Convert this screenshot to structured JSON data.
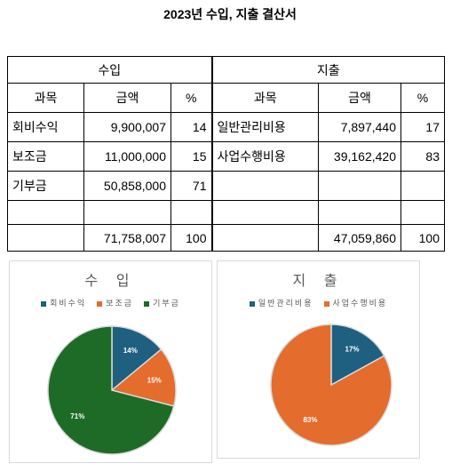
{
  "title": "2023년 수입, 지출 결산서",
  "table": {
    "groups": [
      "수입",
      "지출"
    ],
    "columns": [
      "과목",
      "금액",
      "%",
      "과목",
      "금액",
      "%"
    ],
    "rows": [
      [
        "회비수익",
        "9,900,007",
        "14",
        "일반관리비용",
        "7,897,440",
        "17"
      ],
      [
        "보조금",
        "11,000,000",
        "15",
        "사업수행비용",
        "39,162,420",
        "83"
      ],
      [
        "기부금",
        "50,858,000",
        "71",
        null,
        null,
        null
      ],
      [
        null,
        null,
        null,
        null,
        null,
        null
      ],
      [
        null,
        "71,758,007",
        "100",
        null,
        "47,059,860",
        "100"
      ]
    ]
  },
  "chart_data": [
    {
      "type": "pie",
      "title": "수 입",
      "categories": [
        "회비수익",
        "보조금",
        "기부금"
      ],
      "values": [
        14,
        15,
        71
      ],
      "value_labels": [
        "14%",
        "15%",
        "71%"
      ],
      "colors": [
        "#1f5f80",
        "#e46c2c",
        "#1e6b27"
      ]
    },
    {
      "type": "pie",
      "title": "지 출",
      "categories": [
        "일반관리비용",
        "사업수행비용"
      ],
      "values": [
        17,
        83
      ],
      "value_labels": [
        "17%",
        "83%"
      ],
      "colors": [
        "#1f5f80",
        "#e46c2c"
      ]
    }
  ]
}
